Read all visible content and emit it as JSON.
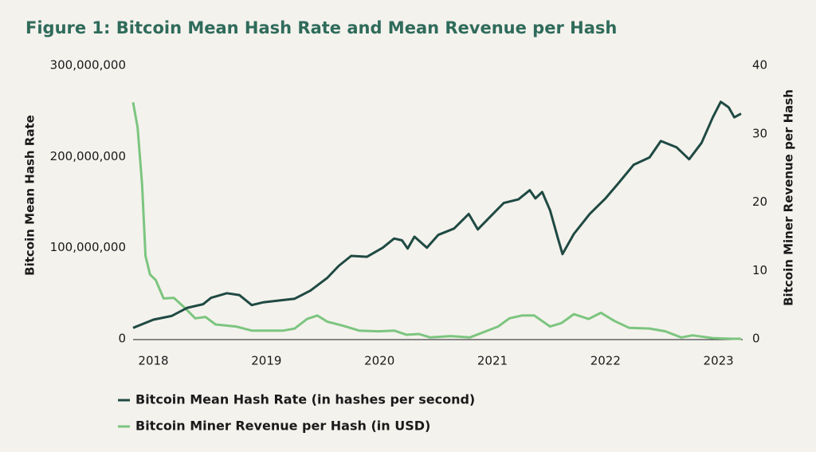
{
  "chart_data": {
    "type": "line",
    "title": "Figure 1: Bitcoin Mean Hash Rate and Mean Revenue per Hash",
    "y_label": "Bitcoin Mean Hash Rate",
    "y2_label": "Bitcoin Miner Revenue per Hash",
    "xlim": [
      2017.82,
      2023.2
    ],
    "xticks": [
      2018,
      2019,
      2020,
      2021,
      2022,
      2023
    ],
    "ylim": [
      0,
      300000000
    ],
    "yticks": [
      0,
      {
        "value": 100000000,
        "label": "100,000,000"
      },
      {
        "value": 200000000,
        "label": "200,000,000"
      },
      {
        "value": 300000000,
        "label": "300,000,000"
      }
    ],
    "y2lim": [
      0,
      40
    ],
    "y2ticks": [
      0,
      10,
      20,
      30,
      40
    ],
    "grid": false,
    "legend": "bottom",
    "series": [
      {
        "name": "Bitcoin Mean Hash Rate (in hashes per second)",
        "color": "#1f4a43",
        "axis": "y",
        "x": [
          2017.82,
          2018.0,
          2018.16,
          2018.3,
          2018.44,
          2018.51,
          2018.65,
          2018.76,
          2018.87,
          2018.97,
          2019.11,
          2019.25,
          2019.39,
          2019.54,
          2019.64,
          2019.75,
          2019.89,
          2020.03,
          2020.13,
          2020.2,
          2020.25,
          2020.31,
          2020.42,
          2020.52,
          2020.66,
          2020.79,
          2020.87,
          2020.98,
          2021.1,
          2021.23,
          2021.33,
          2021.38,
          2021.44,
          2021.51,
          2021.58,
          2021.62,
          2021.72,
          2021.86,
          2022.0,
          2022.11,
          2022.25,
          2022.39,
          2022.49,
          2022.63,
          2022.74,
          2022.85,
          2022.95,
          2023.02,
          2023.09,
          2023.14,
          2023.2
        ],
        "values": [
          12000000,
          21000000,
          25000000,
          34000000,
          38000000,
          45000000,
          50000000,
          48000000,
          37000000,
          40000000,
          42000000,
          44000000,
          53000000,
          67000000,
          80000000,
          91000000,
          90000000,
          100000000,
          110000000,
          108000000,
          99000000,
          112000000,
          100000000,
          114000000,
          121000000,
          137000000,
          120000000,
          134000000,
          149000000,
          153000000,
          163000000,
          154000000,
          161000000,
          141000000,
          110000000,
          93000000,
          115000000,
          137000000,
          154000000,
          170000000,
          191000000,
          199000000,
          217000000,
          210000000,
          197000000,
          215000000,
          243000000,
          260000000,
          254000000,
          243000000,
          247000000
        ]
      },
      {
        "name": "Bitcoin Miner Revenue per Hash (in USD)",
        "color": "#7cc57f",
        "axis": "y2",
        "x": [
          2017.82,
          2017.86,
          2017.9,
          2017.93,
          2017.97,
          2018.02,
          2018.09,
          2018.18,
          2018.28,
          2018.37,
          2018.46,
          2018.55,
          2018.73,
          2018.87,
          2019.01,
          2019.15,
          2019.25,
          2019.36,
          2019.45,
          2019.54,
          2019.68,
          2019.82,
          2019.99,
          2020.13,
          2020.24,
          2020.35,
          2020.45,
          2020.63,
          2020.8,
          2020.94,
          2021.05,
          2021.15,
          2021.26,
          2021.37,
          2021.51,
          2021.61,
          2021.72,
          2021.85,
          2021.96,
          2022.08,
          2022.21,
          2022.39,
          2022.53,
          2022.67,
          2022.77,
          2022.95,
          2023.13,
          2023.2
        ],
        "values": [
          34.6,
          30.9,
          22.6,
          12.1,
          9.4,
          8.6,
          5.9,
          6.0,
          4.5,
          3.0,
          3.2,
          2.1,
          1.8,
          1.2,
          1.2,
          1.2,
          1.5,
          2.9,
          3.4,
          2.5,
          1.9,
          1.2,
          1.1,
          1.2,
          0.6,
          0.7,
          0.2,
          0.4,
          0.2,
          1.1,
          1.8,
          3.0,
          3.4,
          3.4,
          1.8,
          2.3,
          3.6,
          2.9,
          3.8,
          2.6,
          1.6,
          1.5,
          1.1,
          0.2,
          0.5,
          0.1,
          0,
          0
        ]
      }
    ]
  }
}
